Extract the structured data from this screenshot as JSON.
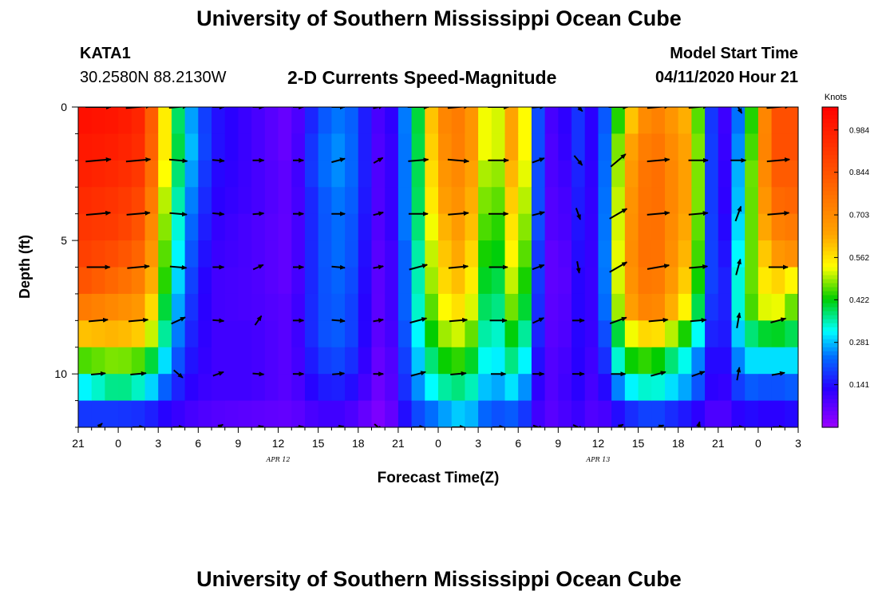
{
  "header": {
    "title": "University of Southern Mississippi Ocean Cube",
    "station_id": "KATA1",
    "location": "30.2580N 88.2130W",
    "chart_subtitle": "2-D Currents Speed-Magnitude",
    "model_start_label": "Model Start Time",
    "model_start_value": "04/11/2020 Hour 21"
  },
  "footer": {
    "title": "University of Southern Mississippi Ocean Cube"
  },
  "chart_data": {
    "type": "heatmap",
    "title": "2-D Currents Speed-Magnitude",
    "xlabel": "Forecast Time(Z)",
    "ylabel": "Depth (ft)",
    "x_tick_labels": [
      "21",
      "0",
      "3",
      "6",
      "9",
      "12",
      "15",
      "18",
      "21",
      "0",
      "3",
      "6",
      "9",
      "12",
      "15",
      "18",
      "21",
      "0",
      "3"
    ],
    "x_hours": [
      -3,
      0,
      3,
      6,
      9,
      12,
      15,
      18,
      21,
      24,
      27,
      30,
      33,
      36,
      39,
      42,
      45,
      48,
      51
    ],
    "xlim_hours": [
      -3,
      51
    ],
    "date_labels": [
      {
        "text": "APR 12",
        "hour": 12
      },
      {
        "text": "APR 13",
        "hour": 36
      }
    ],
    "y_ticks": [
      0,
      5,
      10
    ],
    "ylim_ft": [
      0,
      12
    ],
    "colorbar": {
      "label": "Knots",
      "ticks": [
        "0.984",
        "0.844",
        "0.703",
        "0.562",
        "0.422",
        "0.281",
        "0.141"
      ],
      "tick_values": [
        0.984,
        0.844,
        0.703,
        0.562,
        0.422,
        0.281,
        0.141
      ],
      "range": [
        0.0,
        1.06
      ]
    },
    "depths_ft": [
      0,
      1,
      2,
      3,
      4,
      5,
      6,
      7,
      8,
      9,
      10,
      11,
      12
    ],
    "speed_columns": [
      {
        "hour": -3,
        "speeds": [
          1.02,
          1.0,
          0.98,
          0.95,
          0.92,
          0.9,
          0.85,
          0.75,
          0.6,
          0.45,
          0.3,
          0.18,
          0.1
        ]
      },
      {
        "hour": 0,
        "speeds": [
          1.0,
          0.98,
          0.95,
          0.92,
          0.9,
          0.85,
          0.78,
          0.7,
          0.62,
          0.48,
          0.38,
          0.18,
          0.12
        ]
      },
      {
        "hour": 2,
        "speeds": [
          0.95,
          0.93,
          0.9,
          0.86,
          0.82,
          0.78,
          0.72,
          0.66,
          0.58,
          0.45,
          0.33,
          0.17,
          0.1
        ]
      },
      {
        "hour": 3.5,
        "speeds": [
          0.55,
          0.55,
          0.53,
          0.5,
          0.48,
          0.46,
          0.44,
          0.4,
          0.36,
          0.3,
          0.22,
          0.13,
          0.09
        ]
      },
      {
        "hour": 5,
        "speeds": [
          0.3,
          0.32,
          0.3,
          0.28,
          0.26,
          0.24,
          0.22,
          0.2,
          0.18,
          0.16,
          0.13,
          0.1,
          0.08
        ]
      },
      {
        "hour": 7,
        "speeds": [
          0.15,
          0.15,
          0.14,
          0.13,
          0.12,
          0.11,
          0.1,
          0.1,
          0.1,
          0.1,
          0.1,
          0.08,
          0.07
        ]
      },
      {
        "hour": 10,
        "speeds": [
          0.1,
          0.1,
          0.1,
          0.1,
          0.09,
          0.09,
          0.09,
          0.09,
          0.1,
          0.1,
          0.1,
          0.07,
          0.05
        ]
      },
      {
        "hour": 13,
        "speeds": [
          0.05,
          0.05,
          0.06,
          0.06,
          0.06,
          0.06,
          0.06,
          0.07,
          0.07,
          0.07,
          0.07,
          0.06,
          0.05
        ]
      },
      {
        "hour": 15,
        "speeds": [
          0.2,
          0.22,
          0.22,
          0.2,
          0.2,
          0.2,
          0.2,
          0.2,
          0.2,
          0.18,
          0.15,
          0.1,
          0.08
        ]
      },
      {
        "hour": 17,
        "speeds": [
          0.25,
          0.26,
          0.26,
          0.25,
          0.24,
          0.24,
          0.23,
          0.22,
          0.22,
          0.2,
          0.16,
          0.1,
          0.08
        ]
      },
      {
        "hour": 20,
        "speeds": [
          0.06,
          0.05,
          0.05,
          0.05,
          0.05,
          0.04,
          0.04,
          0.04,
          0.04,
          0.03,
          0.03,
          0.02,
          0.02
        ]
      },
      {
        "hour": 22,
        "speeds": [
          0.3,
          0.3,
          0.3,
          0.3,
          0.3,
          0.28,
          0.28,
          0.28,
          0.26,
          0.24,
          0.22,
          0.18,
          0.12
        ]
      },
      {
        "hour": 24,
        "speeds": [
          0.7,
          0.68,
          0.66,
          0.64,
          0.6,
          0.58,
          0.56,
          0.52,
          0.48,
          0.42,
          0.35,
          0.25,
          0.15
        ]
      },
      {
        "hour": 26,
        "speeds": [
          0.75,
          0.75,
          0.72,
          0.7,
          0.68,
          0.65,
          0.62,
          0.58,
          0.52,
          0.45,
          0.38,
          0.3,
          0.2
        ]
      },
      {
        "hour": 28,
        "speeds": [
          0.45,
          0.45,
          0.42,
          0.4,
          0.38,
          0.36,
          0.34,
          0.32,
          0.3,
          0.28,
          0.25,
          0.2,
          0.15
        ]
      },
      {
        "hour": 30,
        "speeds": [
          0.7,
          0.7,
          0.68,
          0.65,
          0.62,
          0.6,
          0.56,
          0.52,
          0.46,
          0.4,
          0.32,
          0.22,
          0.14
        ]
      },
      {
        "hour": 31.5,
        "speeds": [
          0.2,
          0.2,
          0.2,
          0.2,
          0.2,
          0.18,
          0.18,
          0.17,
          0.16,
          0.14,
          0.12,
          0.1,
          0.08
        ]
      },
      {
        "hour": 33,
        "speeds": [
          0.04,
          0.03,
          0.03,
          0.02,
          0.02,
          0.01,
          0.01,
          0.02,
          0.03,
          0.05,
          0.06,
          0.06,
          0.05
        ]
      },
      {
        "hour": 34,
        "speeds": [
          0.2,
          0.2,
          0.18,
          0.17,
          0.16,
          0.15,
          0.14,
          0.14,
          0.14,
          0.14,
          0.14,
          0.12,
          0.1
        ]
      },
      {
        "hour": 36,
        "speeds": [
          0.1,
          0.1,
          0.1,
          0.1,
          0.1,
          0.1,
          0.1,
          0.1,
          0.1,
          0.09,
          0.08,
          0.07,
          0.06
        ]
      },
      {
        "hour": 38,
        "speeds": [
          0.55,
          0.6,
          0.62,
          0.64,
          0.65,
          0.66,
          0.65,
          0.62,
          0.5,
          0.42,
          0.3,
          0.16,
          0.1
        ]
      },
      {
        "hour": 40,
        "speeds": [
          0.75,
          0.78,
          0.8,
          0.8,
          0.8,
          0.8,
          0.78,
          0.75,
          0.6,
          0.45,
          0.35,
          0.2,
          0.12
        ]
      },
      {
        "hour": 43,
        "speeds": [
          0.6,
          0.62,
          0.62,
          0.62,
          0.6,
          0.58,
          0.55,
          0.5,
          0.4,
          0.3,
          0.25,
          0.14,
          0.1
        ]
      },
      {
        "hour": 45,
        "speeds": [
          0.04,
          0.04,
          0.04,
          0.04,
          0.05,
          0.06,
          0.07,
          0.07,
          0.08,
          0.08,
          0.08,
          0.07,
          0.06
        ]
      },
      {
        "hour": 47,
        "speeds": [
          0.3,
          0.32,
          0.35,
          0.36,
          0.38,
          0.4,
          0.42,
          0.42,
          0.36,
          0.3,
          0.22,
          0.14,
          0.1
        ]
      },
      {
        "hour": 49,
        "speeds": [
          0.85,
          0.85,
          0.82,
          0.78,
          0.72,
          0.66,
          0.6,
          0.55,
          0.42,
          0.3,
          0.2,
          0.12,
          0.08
        ]
      },
      {
        "hour": 51,
        "speeds": [
          0.85,
          0.85,
          0.82,
          0.8,
          0.75,
          0.7,
          0.52,
          0.44,
          0.38,
          0.3,
          0.22,
          0.14,
          0.09
        ]
      }
    ],
    "vector_columns_hours": [
      -1.5,
      1.5,
      4.5,
      7.5,
      10.5,
      13.5,
      16.5,
      19.5,
      22.5,
      25.5,
      28.5,
      31.5,
      34.5,
      37.5,
      40.5,
      43.5,
      46.5,
      49.5
    ],
    "vector_depths_ft": [
      0,
      2,
      4,
      6,
      8,
      10,
      12
    ],
    "vector_directions_deg": [
      [
        0,
        5,
        5,
        0,
        0,
        0,
        0,
        15,
        0,
        5,
        0,
        5,
        -45,
        0,
        5,
        5,
        -60,
        5
      ],
      [
        5,
        5,
        -5,
        -5,
        0,
        0,
        15,
        30,
        5,
        -5,
        0,
        20,
        -50,
        40,
        5,
        0,
        0,
        5
      ],
      [
        5,
        5,
        -5,
        -5,
        5,
        0,
        0,
        15,
        0,
        5,
        0,
        15,
        -70,
        30,
        5,
        5,
        70,
        5
      ],
      [
        0,
        5,
        -5,
        0,
        25,
        0,
        -5,
        10,
        15,
        5,
        0,
        20,
        -80,
        30,
        10,
        5,
        75,
        0
      ],
      [
        5,
        5,
        25,
        -5,
        55,
        0,
        -5,
        10,
        15,
        5,
        0,
        25,
        0,
        20,
        5,
        5,
        80,
        15
      ],
      [
        5,
        5,
        -40,
        20,
        -5,
        0,
        5,
        0,
        15,
        5,
        0,
        0,
        0,
        0,
        15,
        20,
        80,
        10
      ],
      [
        45,
        0,
        0,
        30,
        10,
        5,
        10,
        -40,
        0,
        0,
        0,
        -20,
        -25,
        30,
        20,
        75,
        0,
        0
      ]
    ],
    "vector_magnitudes_knots": [
      [
        1.0,
        0.95,
        0.55,
        0.15,
        0.1,
        0.06,
        0.22,
        0.06,
        0.72,
        0.72,
        0.7,
        0.2,
        0.15,
        0.6,
        0.78,
        0.6,
        0.3,
        0.85
      ],
      [
        0.98,
        0.93,
        0.53,
        0.14,
        0.1,
        0.06,
        0.26,
        0.05,
        0.66,
        0.72,
        0.68,
        0.2,
        0.18,
        0.62,
        0.8,
        0.62,
        0.35,
        0.82
      ],
      [
        0.92,
        0.86,
        0.48,
        0.12,
        0.09,
        0.06,
        0.24,
        0.05,
        0.6,
        0.68,
        0.62,
        0.2,
        0.16,
        0.65,
        0.8,
        0.6,
        0.38,
        0.75
      ],
      [
        0.85,
        0.78,
        0.44,
        0.1,
        0.09,
        0.06,
        0.23,
        0.04,
        0.56,
        0.62,
        0.56,
        0.18,
        0.14,
        0.65,
        0.78,
        0.55,
        0.42,
        0.6
      ],
      [
        0.6,
        0.62,
        0.36,
        0.1,
        0.1,
        0.07,
        0.22,
        0.04,
        0.48,
        0.52,
        0.46,
        0.16,
        0.14,
        0.5,
        0.6,
        0.4,
        0.36,
        0.38
      ],
      [
        0.3,
        0.38,
        0.13,
        0.1,
        0.1,
        0.07,
        0.16,
        0.03,
        0.35,
        0.38,
        0.32,
        0.12,
        0.14,
        0.3,
        0.35,
        0.25,
        0.22,
        0.22
      ],
      [
        0.1,
        0.12,
        0.08,
        0.07,
        0.05,
        0.05,
        0.08,
        0.02,
        0.15,
        0.2,
        0.14,
        0.08,
        0.1,
        0.1,
        0.12,
        0.1,
        0.1,
        0.09
      ]
    ]
  }
}
